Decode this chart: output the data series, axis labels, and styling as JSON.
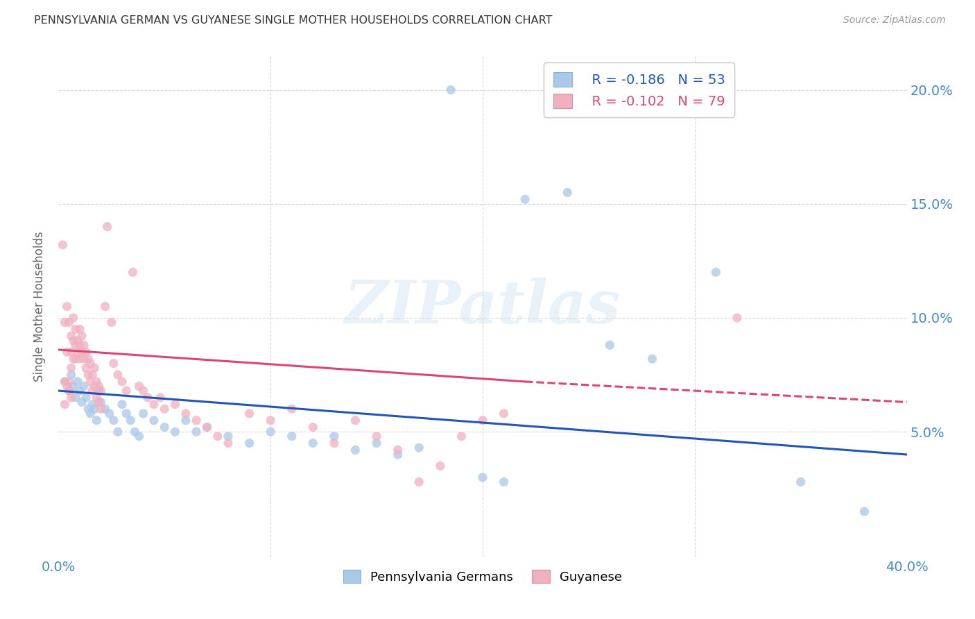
{
  "title": "PENNSYLVANIA GERMAN VS GUYANESE SINGLE MOTHER HOUSEHOLDS CORRELATION CHART",
  "source": "Source: ZipAtlas.com",
  "ylabel": "Single Mother Households",
  "ytick_labels": [
    "",
    "5.0%",
    "10.0%",
    "15.0%",
    "20.0%"
  ],
  "ytick_values": [
    0.0,
    0.05,
    0.1,
    0.15,
    0.2
  ],
  "xlim": [
    0.0,
    0.4
  ],
  "ylim": [
    -0.005,
    0.215
  ],
  "legend_blue_label": "Pennsylvania Germans",
  "legend_pink_label": "Guyanese",
  "R_blue": -0.186,
  "N_blue": 53,
  "R_pink": -0.102,
  "N_pink": 79,
  "background_color": "#ffffff",
  "grid_color": "#d8d8d8",
  "blue_color": "#aac8e8",
  "pink_color": "#f0b0c0",
  "blue_line_color": "#2255bb",
  "pink_line_color": "#dd4477",
  "title_color": "#333333",
  "source_color": "#999999",
  "axis_label_color": "#4488cc",
  "blue_scatter": [
    [
      0.003,
      0.072
    ],
    [
      0.005,
      0.068
    ],
    [
      0.006,
      0.075
    ],
    [
      0.007,
      0.07
    ],
    [
      0.008,
      0.065
    ],
    [
      0.009,
      0.072
    ],
    [
      0.01,
      0.068
    ],
    [
      0.011,
      0.063
    ],
    [
      0.012,
      0.07
    ],
    [
      0.013,
      0.065
    ],
    [
      0.014,
      0.06
    ],
    [
      0.015,
      0.058
    ],
    [
      0.016,
      0.062
    ],
    [
      0.017,
      0.06
    ],
    [
      0.018,
      0.055
    ],
    [
      0.019,
      0.068
    ],
    [
      0.02,
      0.063
    ],
    [
      0.022,
      0.06
    ],
    [
      0.024,
      0.058
    ],
    [
      0.026,
      0.055
    ],
    [
      0.028,
      0.05
    ],
    [
      0.03,
      0.062
    ],
    [
      0.032,
      0.058
    ],
    [
      0.034,
      0.055
    ],
    [
      0.036,
      0.05
    ],
    [
      0.038,
      0.048
    ],
    [
      0.04,
      0.058
    ],
    [
      0.045,
      0.055
    ],
    [
      0.05,
      0.052
    ],
    [
      0.055,
      0.05
    ],
    [
      0.06,
      0.055
    ],
    [
      0.065,
      0.05
    ],
    [
      0.07,
      0.052
    ],
    [
      0.08,
      0.048
    ],
    [
      0.09,
      0.045
    ],
    [
      0.1,
      0.05
    ],
    [
      0.11,
      0.048
    ],
    [
      0.12,
      0.045
    ],
    [
      0.13,
      0.048
    ],
    [
      0.14,
      0.042
    ],
    [
      0.15,
      0.045
    ],
    [
      0.16,
      0.04
    ],
    [
      0.17,
      0.043
    ],
    [
      0.185,
      0.2
    ],
    [
      0.2,
      0.03
    ],
    [
      0.21,
      0.028
    ],
    [
      0.22,
      0.152
    ],
    [
      0.24,
      0.155
    ],
    [
      0.26,
      0.088
    ],
    [
      0.28,
      0.082
    ],
    [
      0.31,
      0.12
    ],
    [
      0.35,
      0.028
    ],
    [
      0.38,
      0.015
    ]
  ],
  "pink_scatter": [
    [
      0.002,
      0.132
    ],
    [
      0.003,
      0.098
    ],
    [
      0.003,
      0.072
    ],
    [
      0.004,
      0.105
    ],
    [
      0.004,
      0.085
    ],
    [
      0.005,
      0.098
    ],
    [
      0.005,
      0.072
    ],
    [
      0.005,
      0.068
    ],
    [
      0.006,
      0.092
    ],
    [
      0.006,
      0.085
    ],
    [
      0.006,
      0.078
    ],
    [
      0.007,
      0.09
    ],
    [
      0.007,
      0.082
    ],
    [
      0.007,
      0.1
    ],
    [
      0.008,
      0.095
    ],
    [
      0.008,
      0.088
    ],
    [
      0.008,
      0.082
    ],
    [
      0.009,
      0.09
    ],
    [
      0.009,
      0.085
    ],
    [
      0.01,
      0.088
    ],
    [
      0.01,
      0.082
    ],
    [
      0.01,
      0.095
    ],
    [
      0.011,
      0.085
    ],
    [
      0.011,
      0.092
    ],
    [
      0.012,
      0.088
    ],
    [
      0.012,
      0.082
    ],
    [
      0.013,
      0.085
    ],
    [
      0.013,
      0.078
    ],
    [
      0.014,
      0.082
    ],
    [
      0.014,
      0.075
    ],
    [
      0.015,
      0.08
    ],
    [
      0.015,
      0.072
    ],
    [
      0.016,
      0.075
    ],
    [
      0.016,
      0.068
    ],
    [
      0.017,
      0.078
    ],
    [
      0.017,
      0.07
    ],
    [
      0.018,
      0.072
    ],
    [
      0.018,
      0.065
    ],
    [
      0.019,
      0.07
    ],
    [
      0.019,
      0.063
    ],
    [
      0.02,
      0.068
    ],
    [
      0.02,
      0.06
    ],
    [
      0.022,
      0.105
    ],
    [
      0.023,
      0.14
    ],
    [
      0.025,
      0.098
    ],
    [
      0.026,
      0.08
    ],
    [
      0.028,
      0.075
    ],
    [
      0.03,
      0.072
    ],
    [
      0.032,
      0.068
    ],
    [
      0.035,
      0.12
    ],
    [
      0.038,
      0.07
    ],
    [
      0.04,
      0.068
    ],
    [
      0.042,
      0.065
    ],
    [
      0.045,
      0.062
    ],
    [
      0.048,
      0.065
    ],
    [
      0.05,
      0.06
    ],
    [
      0.055,
      0.062
    ],
    [
      0.06,
      0.058
    ],
    [
      0.065,
      0.055
    ],
    [
      0.07,
      0.052
    ],
    [
      0.075,
      0.048
    ],
    [
      0.08,
      0.045
    ],
    [
      0.09,
      0.058
    ],
    [
      0.1,
      0.055
    ],
    [
      0.11,
      0.06
    ],
    [
      0.12,
      0.052
    ],
    [
      0.13,
      0.045
    ],
    [
      0.14,
      0.055
    ],
    [
      0.15,
      0.048
    ],
    [
      0.16,
      0.042
    ],
    [
      0.17,
      0.028
    ],
    [
      0.18,
      0.035
    ],
    [
      0.19,
      0.048
    ],
    [
      0.2,
      0.055
    ],
    [
      0.21,
      0.058
    ],
    [
      0.32,
      0.1
    ],
    [
      0.003,
      0.062
    ],
    [
      0.004,
      0.07
    ],
    [
      0.006,
      0.065
    ]
  ],
  "blue_line": {
    "x0": 0.0,
    "x1": 0.4,
    "y0": 0.068,
    "y1": 0.04
  },
  "pink_line_solid": {
    "x0": 0.0,
    "x1": 0.22,
    "y0": 0.086,
    "y1": 0.072
  },
  "pink_line_dashed": {
    "x0": 0.22,
    "x1": 0.4,
    "y0": 0.072,
    "y1": 0.063
  }
}
